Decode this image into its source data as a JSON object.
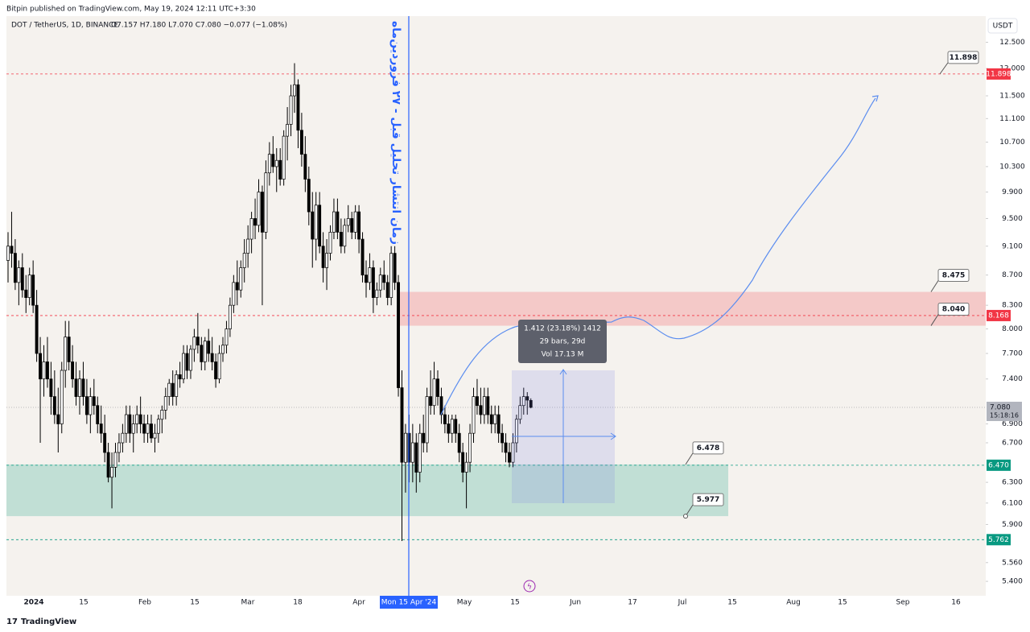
{
  "header": {
    "publisher": "Bitpin published on TradingView.com, May 19, 2024 12:11 UTC+3:30",
    "symbol": "DOT / TetherUS, 1D, BINANCE",
    "ohlc_text": "O7.157 H7.180 L7.070 C7.080 −0.077 (−1.08%)",
    "currency": "USDT"
  },
  "footer": {
    "brand": "TradingView"
  },
  "annotation": {
    "vertical_text": "زمان انتشار تحلیل قبل - ۲۷ فروردین‌ماه",
    "cursor_date": "Mon 15 Apr '24"
  },
  "measure": {
    "lines": [
      "1.412 (23.18%) 1412",
      "29 bars, 29d",
      "Vol 17.13 M"
    ]
  },
  "chart_data": {
    "type": "candlestick",
    "log_scale": true,
    "grid": false,
    "up_color": "#ffffff",
    "down_color": "#000000",
    "ylim": [
      5.28,
      13.02
    ],
    "yticks": [
      {
        "value": 12.5,
        "label": "12.500"
      },
      {
        "value": 12,
        "label": "12.000"
      },
      {
        "value": 11.5,
        "label": "11.500"
      },
      {
        "value": 11.1,
        "label": "11.100"
      },
      {
        "value": 10.7,
        "label": "10.700"
      },
      {
        "value": 10.3,
        "label": "10.300"
      },
      {
        "value": 9.9,
        "label": "9.900"
      },
      {
        "value": 9.5,
        "label": "9.500"
      },
      {
        "value": 9.1,
        "label": "9.100"
      },
      {
        "value": 8.7,
        "label": "8.700"
      },
      {
        "value": 8.3,
        "label": "8.300"
      },
      {
        "value": 8,
        "label": "8.000"
      },
      {
        "value": 7.7,
        "label": "7.700"
      },
      {
        "value": 7.4,
        "label": "7.400"
      },
      {
        "value": 6.9,
        "label": "6.900"
      },
      {
        "value": 6.7,
        "label": "6.700"
      },
      {
        "value": 6.3,
        "label": "6.300"
      },
      {
        "value": 6.1,
        "label": "6.100"
      },
      {
        "value": 5.9,
        "label": "5.900"
      },
      {
        "value": 5.56,
        "label": "5.560"
      },
      {
        "value": 5.4,
        "label": "5.400"
      }
    ],
    "xtick_labels": [
      "2024",
      "15",
      "Feb",
      "15",
      "Mar",
      "18",
      "Apr",
      "May",
      "15",
      "Jun",
      "17",
      "Jul",
      "15",
      "Aug",
      "15",
      "Sep",
      "16"
    ],
    "price_lines": [
      {
        "value": 11.898,
        "label": "11.898",
        "color": "#f23645"
      },
      {
        "value": 8.168,
        "label": "8.168",
        "color": "#f23645"
      },
      {
        "value": 6.47,
        "label": "6.470",
        "color": "#089981"
      },
      {
        "value": 5.762,
        "label": "5.762",
        "color": "#089981"
      }
    ],
    "last_price": {
      "value": 7.08,
      "label": "7.080",
      "countdown": "15:18:16"
    },
    "zones": [
      {
        "top": {
          "value": 8.475,
          "label": "8.475"
        },
        "bottom": {
          "value": 8.04,
          "label": "8.040"
        },
        "color": "rgba(242,54,69,0.22)"
      },
      {
        "top": {
          "value": 6.478,
          "label": "6.478"
        },
        "bottom": {
          "value": 5.977,
          "label": "5.977"
        },
        "color": "rgba(8,153,129,0.22)"
      }
    ],
    "ohlc": [
      [
        8.9,
        9.3,
        8.6,
        9.1
      ],
      [
        9.1,
        9.6,
        8.8,
        9.0
      ],
      [
        9.0,
        9.2,
        8.5,
        8.6
      ],
      [
        8.6,
        8.9,
        8.3,
        8.8
      ],
      [
        8.8,
        9.0,
        8.4,
        8.5
      ],
      [
        8.5,
        8.7,
        8.2,
        8.4
      ],
      [
        8.4,
        8.8,
        8.3,
        8.7
      ],
      [
        8.7,
        8.9,
        8.2,
        8.3
      ],
      [
        8.3,
        8.5,
        7.6,
        7.7
      ],
      [
        7.7,
        7.9,
        6.7,
        7.4
      ],
      [
        7.4,
        7.8,
        7.2,
        7.6
      ],
      [
        7.6,
        7.9,
        7.3,
        7.4
      ],
      [
        7.4,
        7.6,
        7.0,
        7.2
      ],
      [
        7.2,
        7.5,
        6.9,
        7.0
      ],
      [
        7.0,
        7.3,
        6.6,
        6.9
      ],
      [
        6.9,
        7.6,
        6.8,
        7.5
      ],
      [
        7.5,
        8.1,
        7.3,
        7.9
      ],
      [
        7.9,
        8.1,
        7.5,
        7.6
      ],
      [
        7.6,
        7.8,
        7.3,
        7.4
      ],
      [
        7.4,
        7.6,
        7.1,
        7.2
      ],
      [
        7.2,
        7.5,
        7.0,
        7.4
      ],
      [
        7.4,
        7.6,
        7.1,
        7.2
      ],
      [
        7.2,
        7.4,
        6.9,
        7.0
      ],
      [
        7.0,
        7.3,
        6.8,
        7.2
      ],
      [
        7.2,
        7.4,
        7.0,
        7.1
      ],
      [
        7.1,
        7.2,
        6.8,
        6.9
      ],
      [
        6.9,
        7.1,
        6.7,
        6.8
      ],
      [
        6.8,
        7.0,
        6.5,
        6.6
      ],
      [
        6.6,
        6.7,
        6.3,
        6.35
      ],
      [
        6.35,
        6.6,
        6.05,
        6.45
      ],
      [
        6.45,
        6.7,
        6.35,
        6.6
      ],
      [
        6.6,
        6.8,
        6.5,
        6.7
      ],
      [
        6.7,
        6.9,
        6.6,
        6.8
      ],
      [
        6.8,
        7.1,
        6.7,
        7.0
      ],
      [
        7.0,
        7.1,
        6.7,
        6.8
      ],
      [
        6.8,
        7.0,
        6.6,
        6.9
      ],
      [
        6.9,
        7.1,
        6.8,
        7.0
      ],
      [
        7.0,
        7.2,
        6.8,
        6.9
      ],
      [
        6.9,
        7.0,
        6.7,
        6.8
      ],
      [
        6.8,
        7.0,
        6.7,
        6.9
      ],
      [
        6.9,
        7.0,
        6.7,
        6.75
      ],
      [
        6.75,
        6.9,
        6.6,
        6.8
      ],
      [
        6.8,
        7.0,
        6.7,
        6.95
      ],
      [
        6.95,
        7.1,
        6.8,
        7.05
      ],
      [
        7.05,
        7.3,
        6.95,
        7.2
      ],
      [
        7.2,
        7.4,
        7.1,
        7.35
      ],
      [
        7.35,
        7.5,
        7.1,
        7.2
      ],
      [
        7.2,
        7.5,
        7.1,
        7.45
      ],
      [
        7.45,
        7.6,
        7.3,
        7.4
      ],
      [
        7.4,
        7.8,
        7.35,
        7.7
      ],
      [
        7.7,
        7.8,
        7.4,
        7.5
      ],
      [
        7.5,
        7.8,
        7.4,
        7.75
      ],
      [
        7.75,
        8.0,
        7.6,
        7.9
      ],
      [
        7.9,
        8.2,
        7.7,
        7.8
      ],
      [
        7.8,
        7.9,
        7.5,
        7.6
      ],
      [
        7.6,
        7.9,
        7.5,
        7.85
      ],
      [
        7.85,
        8.0,
        7.6,
        7.7
      ],
      [
        7.7,
        7.9,
        7.5,
        7.6
      ],
      [
        7.6,
        7.7,
        7.3,
        7.4
      ],
      [
        7.4,
        7.8,
        7.35,
        7.7
      ],
      [
        7.7,
        7.9,
        7.6,
        7.8
      ],
      [
        7.8,
        8.1,
        7.7,
        8.0
      ],
      [
        8.0,
        8.4,
        7.9,
        8.3
      ],
      [
        8.3,
        8.7,
        8.2,
        8.6
      ],
      [
        8.6,
        8.9,
        8.3,
        8.5
      ],
      [
        8.5,
        8.9,
        8.4,
        8.8
      ],
      [
        8.8,
        9.2,
        8.6,
        9.0
      ],
      [
        9.0,
        9.4,
        8.8,
        9.2
      ],
      [
        9.2,
        9.6,
        9.0,
        9.5
      ],
      [
        9.5,
        9.8,
        9.2,
        9.4
      ],
      [
        9.4,
        10.1,
        9.3,
        9.9
      ],
      [
        9.9,
        10.0,
        8.3,
        9.3
      ],
      [
        9.3,
        10.4,
        9.2,
        10.2
      ],
      [
        10.2,
        10.7,
        10.0,
        10.5
      ],
      [
        10.5,
        10.8,
        10.2,
        10.3
      ],
      [
        10.3,
        10.6,
        9.9,
        10.4
      ],
      [
        10.4,
        10.6,
        10.0,
        10.1
      ],
      [
        10.1,
        10.9,
        10.0,
        10.8
      ],
      [
        10.8,
        11.3,
        10.4,
        11.0
      ],
      [
        11.0,
        11.7,
        10.8,
        11.5
      ],
      [
        11.5,
        12.1,
        11.2,
        11.7
      ],
      [
        11.7,
        11.8,
        10.6,
        10.9
      ],
      [
        10.9,
        11.2,
        10.3,
        10.5
      ],
      [
        10.5,
        10.8,
        9.9,
        10.1
      ],
      [
        10.1,
        10.3,
        9.4,
        9.6
      ],
      [
        9.6,
        9.9,
        8.8,
        9.2
      ],
      [
        9.2,
        9.9,
        8.9,
        9.7
      ],
      [
        9.7,
        9.9,
        9.0,
        9.1
      ],
      [
        9.1,
        9.3,
        8.6,
        8.8
      ],
      [
        8.8,
        9.2,
        8.5,
        9.0
      ],
      [
        9.0,
        9.4,
        8.9,
        9.3
      ],
      [
        9.3,
        9.8,
        9.2,
        9.6
      ],
      [
        9.6,
        9.8,
        9.2,
        9.3
      ],
      [
        9.3,
        9.5,
        9.0,
        9.1
      ],
      [
        9.1,
        9.5,
        9.0,
        9.4
      ],
      [
        9.4,
        9.7,
        9.3,
        9.5
      ],
      [
        9.5,
        9.6,
        9.2,
        9.3
      ],
      [
        9.3,
        9.7,
        9.2,
        9.6
      ],
      [
        9.6,
        9.7,
        9.0,
        9.2
      ],
      [
        9.2,
        9.3,
        8.6,
        8.7
      ],
      [
        8.7,
        8.9,
        8.4,
        8.6
      ],
      [
        8.6,
        9.0,
        8.5,
        8.8
      ],
      [
        8.8,
        8.9,
        8.2,
        8.4
      ],
      [
        8.4,
        8.6,
        8.3,
        8.5
      ],
      [
        8.5,
        8.8,
        8.4,
        8.7
      ],
      [
        8.7,
        8.9,
        8.5,
        8.6
      ],
      [
        8.6,
        8.7,
        8.3,
        8.4
      ],
      [
        8.4,
        9.1,
        8.3,
        9.0
      ],
      [
        9.0,
        9.1,
        8.5,
        8.6
      ],
      [
        8.6,
        8.7,
        7.2,
        7.3
      ],
      [
        7.3,
        7.5,
        5.75,
        6.5
      ],
      [
        6.5,
        6.9,
        6.2,
        6.8
      ],
      [
        6.8,
        7.0,
        6.3,
        6.5
      ],
      [
        6.5,
        6.9,
        6.3,
        6.7
      ],
      [
        6.7,
        6.8,
        6.2,
        6.4
      ],
      [
        6.4,
        6.9,
        6.3,
        6.8
      ],
      [
        6.8,
        7.0,
        6.6,
        6.7
      ],
      [
        6.7,
        7.3,
        6.6,
        7.2
      ],
      [
        7.2,
        7.5,
        7.0,
        7.1
      ],
      [
        7.1,
        7.6,
        7.0,
        7.4
      ],
      [
        7.4,
        7.5,
        7.1,
        7.2
      ],
      [
        7.2,
        7.3,
        6.9,
        7.0
      ],
      [
        7.0,
        7.1,
        6.8,
        6.9
      ],
      [
        6.9,
        7.0,
        6.7,
        6.8
      ],
      [
        6.8,
        7.0,
        6.7,
        6.95
      ],
      [
        6.95,
        7.0,
        6.7,
        6.8
      ],
      [
        6.8,
        6.9,
        6.5,
        6.6
      ],
      [
        6.6,
        6.7,
        6.3,
        6.4
      ],
      [
        6.4,
        6.6,
        6.05,
        6.5
      ],
      [
        6.5,
        6.9,
        6.4,
        6.8
      ],
      [
        6.8,
        7.3,
        6.7,
        7.2
      ],
      [
        7.2,
        7.4,
        7.0,
        7.1
      ],
      [
        7.1,
        7.3,
        6.9,
        7.0
      ],
      [
        7.0,
        7.3,
        6.9,
        7.2
      ],
      [
        7.2,
        7.3,
        6.9,
        7.0
      ],
      [
        7.0,
        7.1,
        6.8,
        6.9
      ],
      [
        6.9,
        7.1,
        6.8,
        7.0
      ],
      [
        7.0,
        7.1,
        6.7,
        6.8
      ],
      [
        6.8,
        6.9,
        6.6,
        6.7
      ],
      [
        6.7,
        6.8,
        6.5,
        6.6
      ],
      [
        6.6,
        6.7,
        6.45,
        6.5
      ],
      [
        6.5,
        6.8,
        6.45,
        6.7
      ],
      [
        6.7,
        7.0,
        6.6,
        6.95
      ],
      [
        6.95,
        7.2,
        6.9,
        7.1
      ],
      [
        7.1,
        7.3,
        7.0,
        7.2
      ],
      [
        7.2,
        7.25,
        7.0,
        7.16
      ],
      [
        7.157,
        7.18,
        7.07,
        7.08
      ]
    ]
  }
}
